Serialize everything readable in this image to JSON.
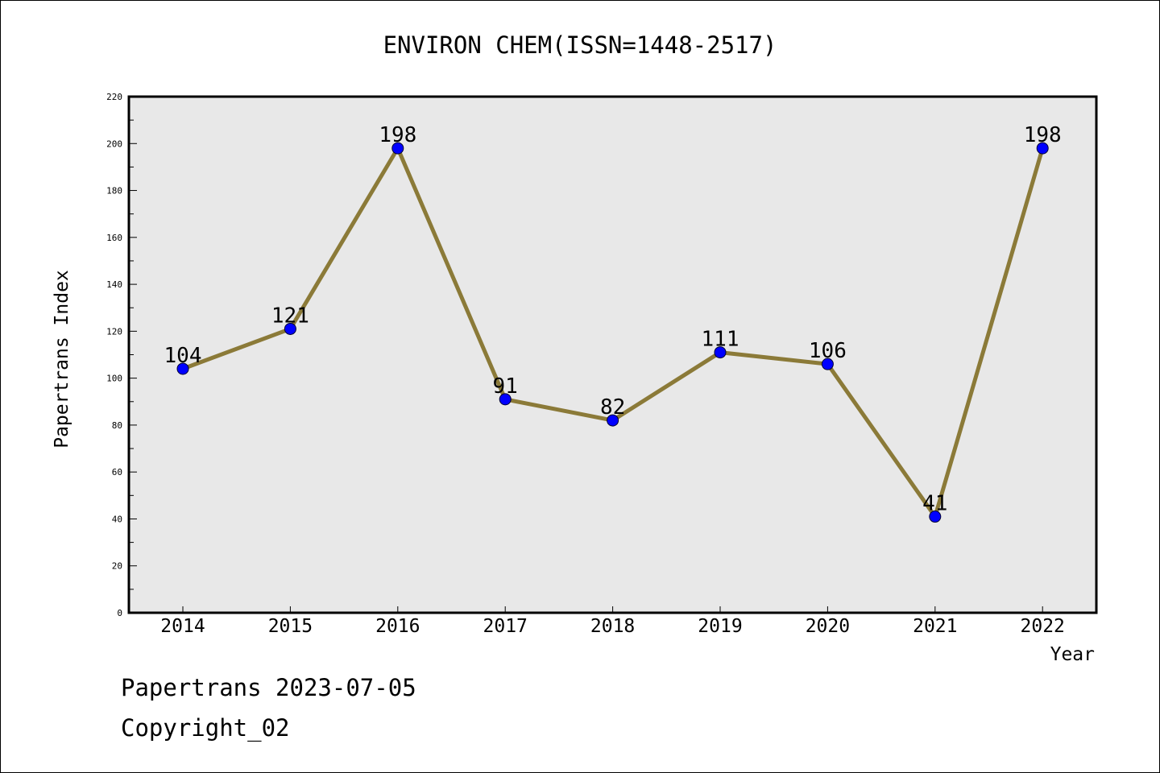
{
  "chart_data": {
    "type": "line",
    "title": "ENVIRON CHEM(ISSN=1448-2517)",
    "xlabel": "Year",
    "ylabel": "Papertrans Index",
    "x": [
      "2014",
      "2015",
      "2016",
      "2017",
      "2018",
      "2019",
      "2020",
      "2021",
      "2022"
    ],
    "series": [
      {
        "values": [
          104,
          121,
          198,
          91,
          82,
          111,
          106,
          41,
          198
        ],
        "data_labels": [
          "104",
          "121",
          "198",
          "91",
          "82",
          "111",
          "106",
          "41",
          "198"
        ]
      }
    ],
    "ylim": [
      0,
      220
    ],
    "yticks": [
      0,
      20,
      40,
      60,
      80,
      100,
      120,
      140,
      160,
      180,
      200,
      220
    ],
    "ytick_labels": [
      "0",
      "20",
      "40",
      "60",
      "80",
      "100",
      "120",
      "140",
      "160",
      "180",
      "200",
      "220"
    ],
    "grid": false,
    "colors": {
      "line": "#8b7a38",
      "marker": "#0000ff",
      "plot_background": "#e8e8e8"
    }
  },
  "footer": {
    "line1": "Papertrans 2023-07-05",
    "line2": "Copyright_02"
  }
}
